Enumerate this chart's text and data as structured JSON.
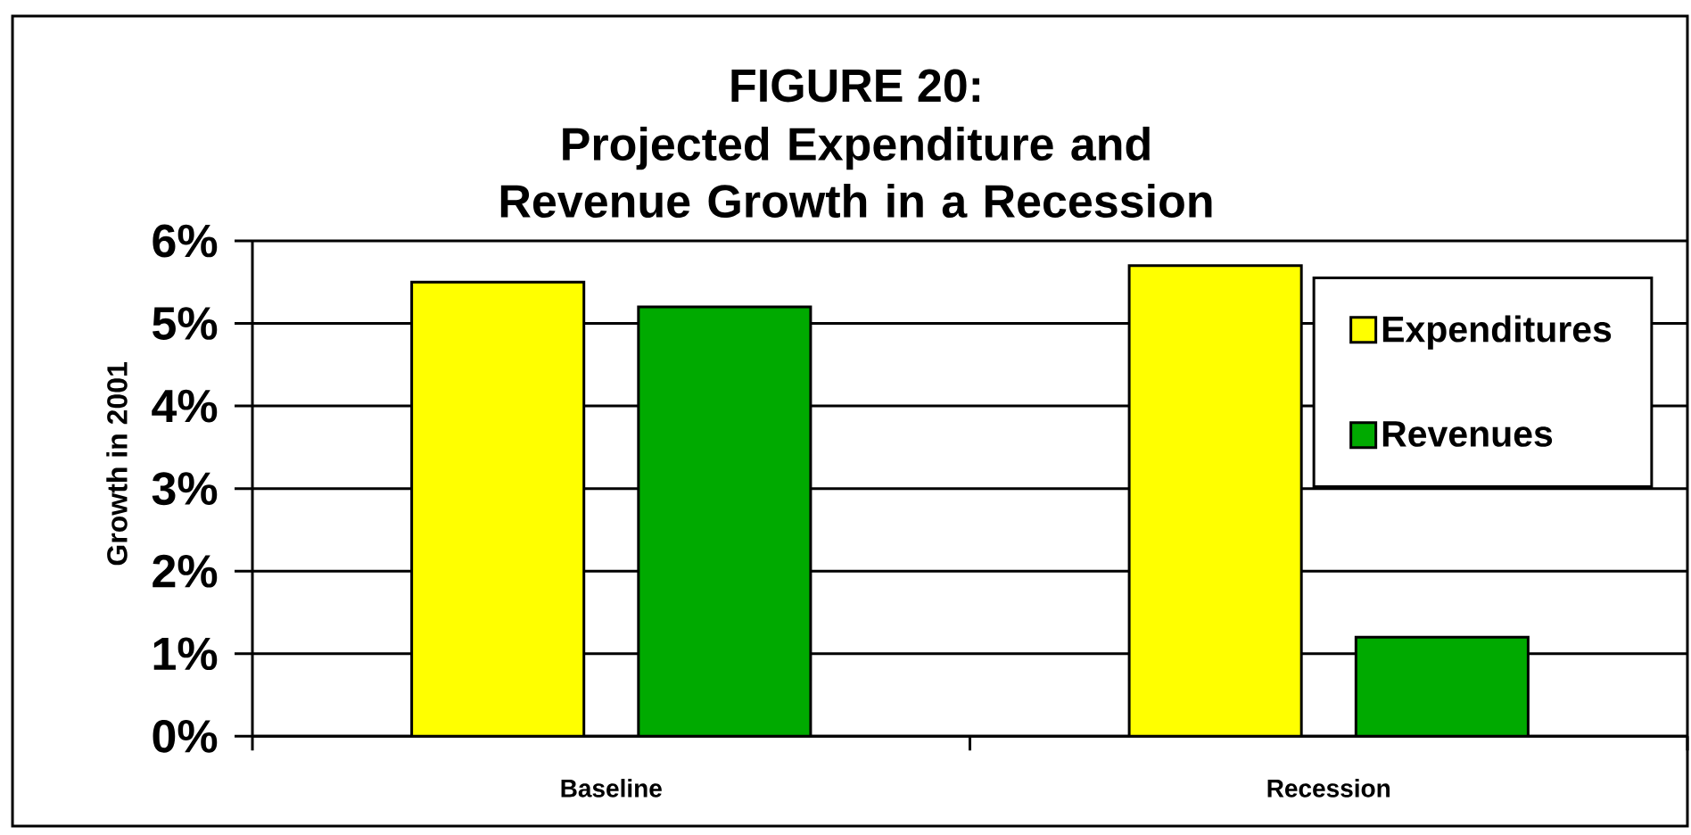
{
  "chart_data": {
    "type": "bar",
    "title": "FIGURE 20:",
    "subtitle": "Projected Expenditure and Revenue Growth in a Recession",
    "ylabel": "Growth in 2001",
    "categories": [
      "Baseline",
      "Recession"
    ],
    "series": [
      {
        "name": "Expenditures",
        "color": "#ffff00",
        "values": [
          5.5,
          5.7
        ]
      },
      {
        "name": "Revenues",
        "color": "#00aa00",
        "values": [
          5.2,
          1.2
        ]
      }
    ],
    "ylim": [
      0,
      6
    ],
    "yticks": [
      {
        "value": 0,
        "label": "0%"
      },
      {
        "value": 1,
        "label": "1%"
      },
      {
        "value": 2,
        "label": "2%"
      },
      {
        "value": 3,
        "label": "3%"
      },
      {
        "value": 4,
        "label": "4%"
      },
      {
        "value": 5,
        "label": "5%"
      },
      {
        "value": 6,
        "label": "6%"
      }
    ],
    "grid": "y",
    "legend": "top right"
  }
}
